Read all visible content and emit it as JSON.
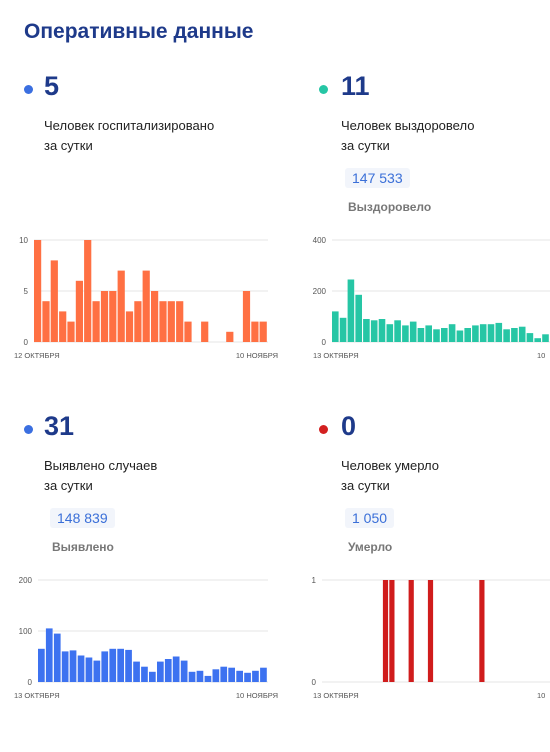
{
  "page_title": "Оперативные данные",
  "panels": [
    {
      "number": "5",
      "caption_line1": "Человек госпитализировано",
      "caption_line2": "за сутки",
      "dot_color": "#3b6fe0",
      "bar_color": "#ff7043"
    },
    {
      "number": "11",
      "caption_line1": "Человек выздоровело",
      "caption_line2": "за сутки",
      "total_value": "147 533",
      "total_label": "Выздоровело",
      "dot_color": "#26c6a5",
      "bar_color": "#26c6a5"
    },
    {
      "number": "31",
      "caption_line1": "Выявлено случаев",
      "caption_line2": "за сутки",
      "total_value": "148 839",
      "total_label": "Выявлено",
      "dot_color": "#3b6fe0",
      "bar_color": "#3d72f0"
    },
    {
      "number": "0",
      "caption_line1": "Человек умерло",
      "caption_line2": "за сутки",
      "total_value": "1 050",
      "total_label": "Умерло",
      "dot_color": "#d32020",
      "bar_color": "#d01c1c"
    }
  ],
  "chart_data": [
    {
      "type": "bar",
      "title": "Человек госпитализировано за сутки",
      "x_start_label": "12 ОКТЯБРЯ",
      "x_end_label": "10 НОЯБРЯ",
      "yticks": [
        0,
        5,
        10
      ],
      "ylim": [
        0,
        10
      ],
      "values": [
        10,
        4,
        8,
        3,
        2,
        6,
        10,
        4,
        5,
        5,
        7,
        3,
        4,
        7,
        5,
        4,
        4,
        4,
        2,
        0,
        2,
        0,
        0,
        1,
        0,
        5,
        2,
        2
      ],
      "grid": true
    },
    {
      "type": "bar",
      "title": "Человек выздоровело за сутки",
      "x_start_label": "13 ОКТЯБРЯ",
      "x_end_label": "10",
      "yticks": [
        0,
        200,
        400
      ],
      "ylim": [
        0,
        400
      ],
      "values": [
        120,
        95,
        245,
        185,
        90,
        85,
        90,
        70,
        85,
        65,
        80,
        55,
        65,
        50,
        55,
        70,
        45,
        55,
        65,
        70,
        70,
        75,
        50,
        55,
        60,
        35,
        15,
        30
      ],
      "grid": true
    },
    {
      "type": "bar",
      "title": "Выявлено случаев за сутки",
      "x_start_label": "13 ОКТЯБРЯ",
      "x_end_label": "10 НОЯБРЯ",
      "yticks": [
        0,
        100,
        200
      ],
      "ylim": [
        0,
        200
      ],
      "values": [
        65,
        105,
        95,
        60,
        62,
        52,
        48,
        42,
        60,
        65,
        65,
        63,
        40,
        30,
        20,
        40,
        45,
        50,
        42,
        20,
        22,
        12,
        25,
        30,
        28,
        22,
        18,
        22,
        28
      ],
      "grid": true
    },
    {
      "type": "bar",
      "title": "Человек умерло за сутки",
      "x_start_label": "13 ОКТЯБРЯ",
      "x_end_label": "10",
      "yticks": [
        0,
        1
      ],
      "ylim": [
        0,
        1
      ],
      "values": [
        0,
        0,
        1,
        1,
        0,
        0,
        1,
        0,
        0,
        1,
        0,
        0,
        0,
        0,
        0,
        0,
        0,
        1,
        0,
        0,
        0,
        0,
        0,
        0,
        0,
        0,
        0,
        0
      ],
      "grid": true
    }
  ]
}
